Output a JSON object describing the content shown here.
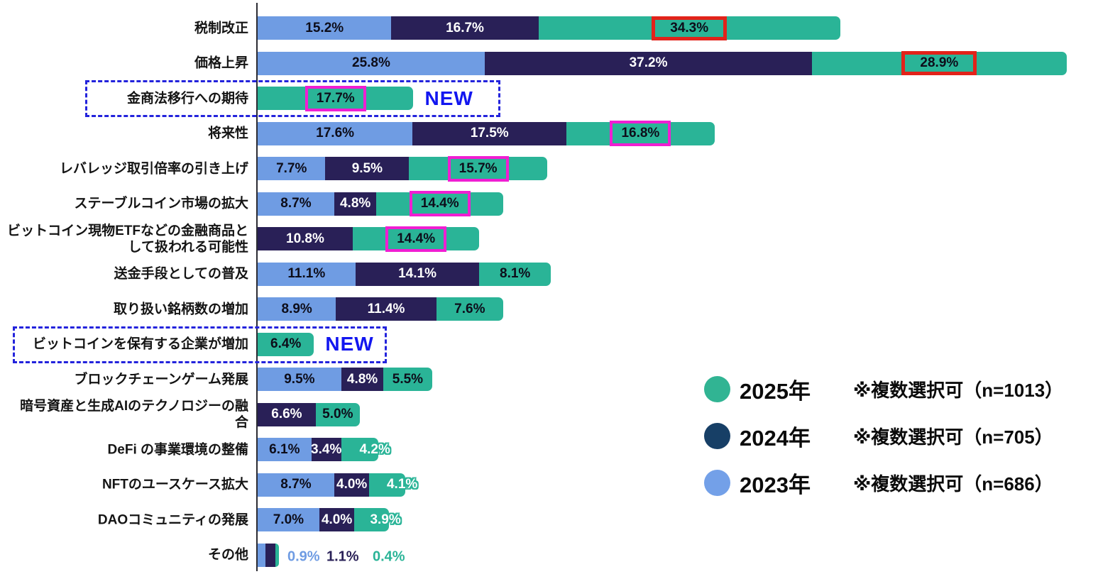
{
  "annotations": {
    "new_label": "NEW"
  },
  "colors": {
    "bar_2023": "#6F9CE3",
    "bar_2024": "#292057",
    "bar_2025": "#2AB497",
    "value_text_dark": "#0D0D1A",
    "value_text_light": "#FFFFFF",
    "highlight_red": "#E2231A",
    "highlight_magenta": "#F01ED2",
    "new_blue": "#1216F0",
    "dashed_box_blue": "#2323DC",
    "axis": "#2B2B33"
  },
  "legend": {
    "items": [
      {
        "year_label": "2025年",
        "note": "※複数選択可（n=1013）",
        "color": "#31B493"
      },
      {
        "year_label": "2024年",
        "note": "※複数選択可（n=705）",
        "color": "#173F66"
      },
      {
        "year_label": "2023年",
        "note": "※複数選択可（n=686）",
        "color": "#73A0E8"
      }
    ]
  },
  "chart_data": {
    "type": "bar",
    "orientation": "horizontal",
    "unit": "%",
    "legend_position": "right-bottom",
    "series_order": [
      "2023",
      "2024",
      "2025"
    ],
    "series": [
      {
        "name": "2023年",
        "n": 686
      },
      {
        "name": "2024年",
        "n": 705
      },
      {
        "name": "2025年",
        "n": 1013
      }
    ],
    "rows": [
      {
        "label": "税制改正",
        "values": {
          "2023": 15.2,
          "2024": 16.7,
          "2025": 34.3
        },
        "highlight": {
          "2025": "red"
        }
      },
      {
        "label": "価格上昇",
        "values": {
          "2023": 25.8,
          "2024": 37.2,
          "2025": 28.9
        },
        "highlight": {
          "2025": "red"
        }
      },
      {
        "label": "金商法移行への期待",
        "values": {
          "2025": 17.7
        },
        "highlight": {
          "2025": "magenta"
        },
        "new": true
      },
      {
        "label": "将来性",
        "values": {
          "2023": 17.6,
          "2024": 17.5,
          "2025": 16.8
        },
        "highlight": {
          "2025": "magenta"
        }
      },
      {
        "label": "レバレッジ取引倍率の引き上げ",
        "values": {
          "2023": 7.7,
          "2024": 9.5,
          "2025": 15.7
        },
        "highlight": {
          "2025": "magenta"
        }
      },
      {
        "label": "ステーブルコイン市場の拡大",
        "values": {
          "2023": 8.7,
          "2024": 4.8,
          "2025": 14.4
        },
        "highlight": {
          "2025": "magenta"
        }
      },
      {
        "label": "ビットコイン現物ETFなどの金融商品として扱われる可能性",
        "label_lines": [
          "ビットコイン現物ETFなどの金融商品と",
          "して扱われる可能性"
        ],
        "values": {
          "2024": 10.8,
          "2025": 14.4
        },
        "highlight": {
          "2025": "magenta"
        }
      },
      {
        "label": "送金手段としての普及",
        "values": {
          "2023": 11.1,
          "2024": 14.1,
          "2025": 8.1
        }
      },
      {
        "label": "取り扱い銘柄数の増加",
        "values": {
          "2023": 8.9,
          "2024": 11.4,
          "2025": 7.6
        }
      },
      {
        "label": "ビットコインを保有する企業が増加",
        "values": {
          "2025": 6.4
        },
        "new": true
      },
      {
        "label": "ブロックチェーンゲーム発展",
        "values": {
          "2023": 9.5,
          "2024": 4.8,
          "2025": 5.5
        }
      },
      {
        "label": "暗号資産と生成AIのテクノロジーの融合",
        "label_lines": [
          "暗号資産と生成AIのテクノロジーの融",
          "合"
        ],
        "values": {
          "2024": 6.6,
          "2025": 5.0
        }
      },
      {
        "label": "DeFi の事業環境の整備",
        "values": {
          "2023": 6.1,
          "2024": 3.4,
          "2025": 4.2
        },
        "label_style": {
          "2025": "outline"
        }
      },
      {
        "label": "NFTのユースケース拡大",
        "values": {
          "2023": 8.7,
          "2024": 4.0,
          "2025": 4.1
        },
        "label_style": {
          "2025": "outline"
        }
      },
      {
        "label": "DAOコミュニティの発展",
        "values": {
          "2023": 7.0,
          "2024": 4.0,
          "2025": 3.9
        },
        "label_style": {
          "2025": "outline"
        }
      },
      {
        "label": "その他",
        "values": {
          "2023": 0.9,
          "2024": 1.1,
          "2025": 0.4
        },
        "labels_outside": true
      }
    ]
  }
}
